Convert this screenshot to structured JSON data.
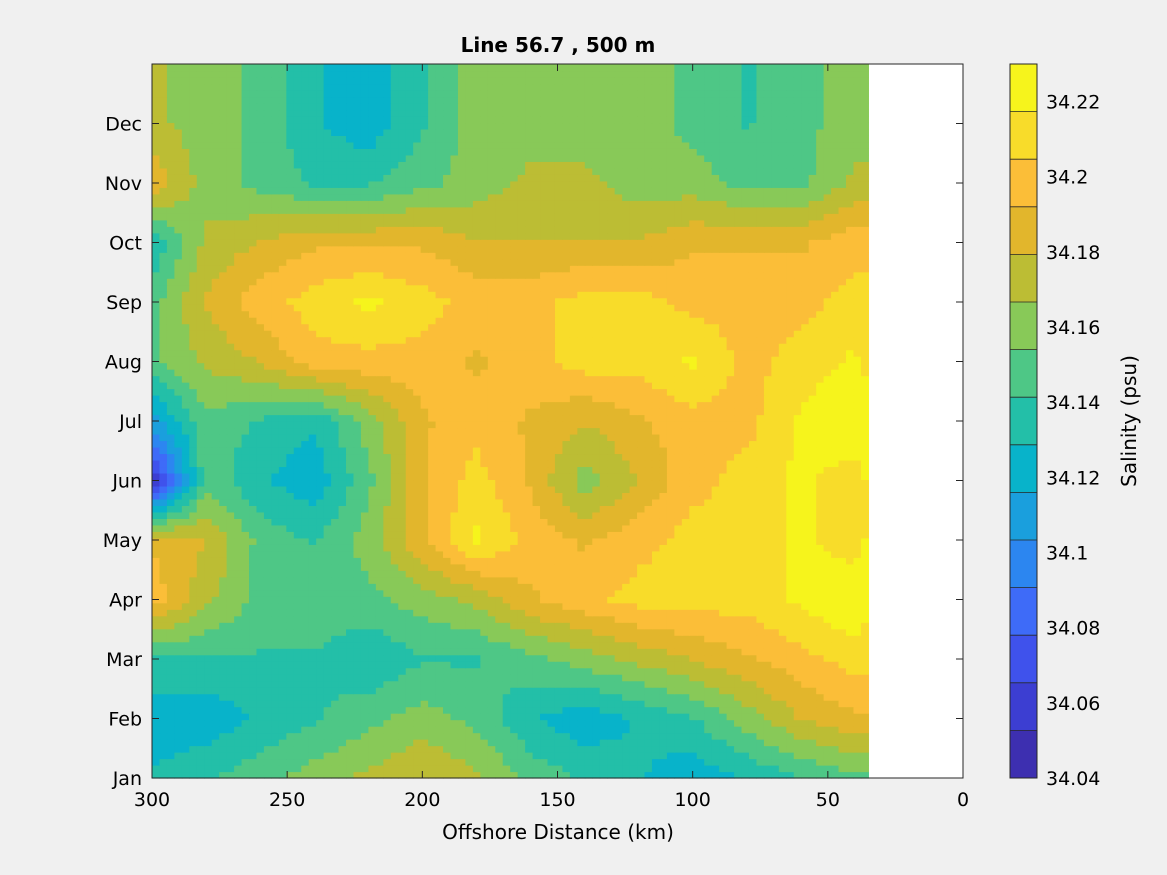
{
  "chart_data": {
    "type": "heatmap",
    "subtype": "filled-contour",
    "title": "Line 56.7 , 500 m",
    "xlabel": "Offshore Distance (km)",
    "ylabel": "",
    "x_axis_direction": "reversed",
    "xlim": [
      300,
      0
    ],
    "x_ticks": [
      300,
      250,
      200,
      150,
      100,
      50,
      0
    ],
    "y_categories": [
      "Jan",
      "Feb",
      "Mar",
      "Apr",
      "May",
      "Jun",
      "Jul",
      "Aug",
      "Sep",
      "Oct",
      "Nov",
      "Dec"
    ],
    "grid": false,
    "colorbar": {
      "label": "Salinity (psu)",
      "range": [
        34.04,
        34.23
      ],
      "tick_values": [
        34.04,
        34.06,
        34.08,
        34.1,
        34.12,
        34.14,
        34.16,
        34.18,
        34.2,
        34.22
      ],
      "tick_labels": [
        "34.04",
        "34.06",
        "34.08",
        "34.1",
        "34.12",
        "34.14",
        "34.16",
        "34.18",
        "34.2",
        "34.22"
      ],
      "level_colors": [
        "#3d2fb0",
        "#3c3ed2",
        "#3f52ec",
        "#3e6bf8",
        "#2c86f0",
        "#1a9fdd",
        "#08b3ca",
        "#23bfa8",
        "#4ec786",
        "#88c958",
        "#bcbd34",
        "#e2b62c",
        "#fbbe38",
        "#f8dc2a",
        "#f6f41c"
      ]
    },
    "grid_x_km": [
      300,
      280,
      260,
      240,
      220,
      200,
      180,
      160,
      140,
      120,
      100,
      80,
      60,
      40,
      35
    ],
    "z": [
      [
        34.13,
        34.14,
        34.15,
        34.16,
        34.17,
        34.18,
        34.17,
        34.15,
        34.14,
        34.13,
        34.12,
        34.13,
        34.14,
        34.15,
        34.15
      ],
      [
        34.12,
        34.12,
        34.13,
        34.14,
        34.15,
        34.16,
        34.15,
        34.13,
        34.12,
        34.13,
        34.14,
        34.16,
        34.18,
        34.19,
        34.19
      ],
      [
        34.14,
        34.14,
        34.14,
        34.14,
        34.13,
        34.14,
        34.14,
        34.15,
        34.16,
        34.17,
        34.18,
        34.19,
        34.2,
        34.21,
        34.21
      ],
      [
        34.2,
        34.17,
        34.15,
        34.15,
        34.15,
        34.16,
        34.17,
        34.19,
        34.2,
        34.21,
        34.21,
        34.21,
        34.22,
        34.23,
        34.22
      ],
      [
        34.19,
        34.18,
        34.15,
        34.14,
        34.16,
        34.19,
        34.22,
        34.2,
        34.19,
        34.2,
        34.21,
        34.21,
        34.22,
        34.21,
        34.22
      ],
      [
        34.05,
        34.15,
        34.13,
        34.12,
        34.15,
        34.19,
        34.21,
        34.19,
        34.16,
        34.18,
        34.2,
        34.21,
        34.22,
        34.21,
        34.22
      ],
      [
        34.11,
        34.15,
        34.14,
        34.13,
        34.16,
        34.19,
        34.2,
        34.19,
        34.18,
        34.19,
        34.2,
        34.2,
        34.22,
        34.23,
        34.23
      ],
      [
        34.15,
        34.17,
        34.18,
        34.2,
        34.2,
        34.2,
        34.19,
        34.2,
        34.21,
        34.21,
        34.22,
        34.2,
        34.21,
        34.22,
        34.21
      ],
      [
        34.15,
        34.18,
        34.2,
        34.21,
        34.22,
        34.21,
        34.2,
        34.2,
        34.21,
        34.21,
        34.2,
        34.2,
        34.2,
        34.21,
        34.21
      ],
      [
        34.13,
        34.17,
        34.18,
        34.19,
        34.19,
        34.19,
        34.18,
        34.18,
        34.18,
        34.18,
        34.19,
        34.19,
        34.19,
        34.2,
        34.2
      ],
      [
        34.19,
        34.16,
        34.15,
        34.14,
        34.14,
        34.15,
        34.16,
        34.17,
        34.17,
        34.16,
        34.16,
        34.15,
        34.15,
        34.17,
        34.17
      ],
      [
        34.17,
        34.16,
        34.15,
        34.13,
        34.12,
        34.14,
        34.16,
        34.16,
        34.16,
        34.16,
        34.15,
        34.14,
        34.15,
        34.16,
        34.16
      ]
    ]
  }
}
